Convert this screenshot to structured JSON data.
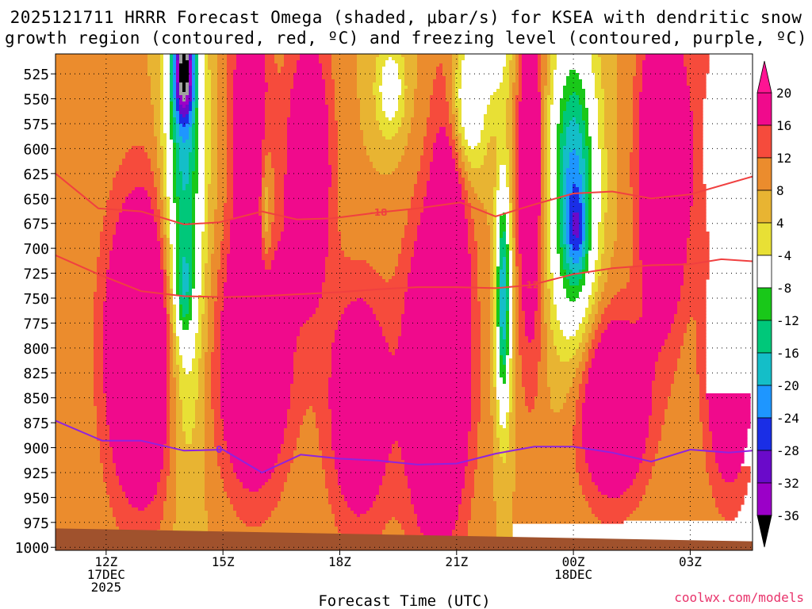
{
  "chart_data": {
    "type": "heatmap",
    "title_line1": "2025121711 HRRR Forecast Omega (shaded, μbar/s) for KSEA with dendritic snow",
    "title_line2": "growth region (contoured, red, ºC) and freezing level (contoured, purple, ºC)",
    "xlabel": "Forecast Time (UTC)",
    "xlim": [
      10.7,
      28.6
    ],
    "ylim": [
      1003,
      505
    ],
    "y_ticks": [
      525,
      550,
      575,
      600,
      625,
      650,
      675,
      700,
      725,
      750,
      775,
      800,
      825,
      850,
      875,
      900,
      925,
      950,
      975,
      1000
    ],
    "x_ticks": [
      {
        "hour": 12,
        "lines": [
          "12Z",
          "17DEC",
          "2025"
        ]
      },
      {
        "hour": 15,
        "lines": [
          "15Z"
        ]
      },
      {
        "hour": 18,
        "lines": [
          "18Z"
        ]
      },
      {
        "hour": 21,
        "lines": [
          "21Z"
        ]
      },
      {
        "hour": 24,
        "lines": [
          "00Z",
          "18DEC"
        ]
      },
      {
        "hour": 27,
        "lines": [
          "03Z"
        ]
      }
    ],
    "colorbar": {
      "levels": [
        -36,
        -32,
        -28,
        -24,
        -20,
        -16,
        -12,
        -8,
        -4,
        4,
        8,
        12,
        16,
        20
      ],
      "colors": [
        "#000000",
        "#a0a0a0",
        "#9b00c8",
        "#6a0aca",
        "#1a2ee6",
        "#1e96ff",
        "#14bec8",
        "#00c87a",
        "#19c819",
        "#ffffff",
        "#e8e035",
        "#e8b432",
        "#eb8c2d",
        "#f64b3c",
        "#f00a8c",
        "#ff1493"
      ]
    },
    "omega_field": {
      "background": 12,
      "blobs": [
        {
          "t": 12.9,
          "p": 800,
          "st": 0.9,
          "sp": 150,
          "v": 26
        },
        {
          "t": 15.8,
          "p": 820,
          "st": 0.9,
          "sp": 120,
          "v": 22
        },
        {
          "t": 15.7,
          "p": 570,
          "st": 0.5,
          "sp": 200,
          "v": 16
        },
        {
          "t": 17.2,
          "p": 620,
          "st": 0.6,
          "sp": 140,
          "v": 18
        },
        {
          "t": 18.5,
          "p": 860,
          "st": 0.8,
          "sp": 120,
          "v": 18
        },
        {
          "t": 20.5,
          "p": 830,
          "st": 0.8,
          "sp": 160,
          "v": 26
        },
        {
          "t": 20.9,
          "p": 600,
          "st": 0.5,
          "sp": 130,
          "v": 16
        },
        {
          "t": 22.9,
          "p": 620,
          "st": 0.35,
          "sp": 200,
          "v": 18
        },
        {
          "t": 25.0,
          "p": 860,
          "st": 0.9,
          "sp": 90,
          "v": 22
        },
        {
          "t": 26.3,
          "p": 620,
          "st": 0.6,
          "sp": 150,
          "v": 26
        },
        {
          "t": 28.3,
          "p": 580,
          "st": 0.9,
          "sp": 140,
          "v": 22
        },
        {
          "t": 28.0,
          "p": 820,
          "st": 0.6,
          "sp": 120,
          "v": 20
        },
        {
          "t": 14.0,
          "p": 620,
          "st": 0.5,
          "sp": 250,
          "v": -26
        },
        {
          "t": 14.0,
          "p": 520,
          "st": 0.28,
          "sp": 50,
          "v": -30
        },
        {
          "t": 14.0,
          "p": 745,
          "st": 0.22,
          "sp": 45,
          "v": -10
        },
        {
          "t": 16.1,
          "p": 670,
          "st": 0.18,
          "sp": 70,
          "v": -12
        },
        {
          "t": 19.3,
          "p": 540,
          "st": 0.4,
          "sp": 50,
          "v": -12
        },
        {
          "t": 21.2,
          "p": 560,
          "st": 0.5,
          "sp": 80,
          "v": -22
        },
        {
          "t": 22.0,
          "p": 500,
          "st": 0.5,
          "sp": 60,
          "v": -10
        },
        {
          "t": 22.2,
          "p": 750,
          "st": 0.2,
          "sp": 120,
          "v": -28
        },
        {
          "t": 24.0,
          "p": 640,
          "st": 0.6,
          "sp": 150,
          "v": -30
        },
        {
          "t": 24.1,
          "p": 685,
          "st": 0.25,
          "sp": 40,
          "v": -10
        }
      ]
    },
    "contours": [
      {
        "label": "-18",
        "color": "#f04040",
        "points": [
          [
            10.7,
            625
          ],
          [
            11.8,
            660
          ],
          [
            12.9,
            663
          ],
          [
            14.0,
            676
          ],
          [
            14.9,
            674
          ],
          [
            16.0,
            663
          ],
          [
            16.9,
            671
          ],
          [
            17.8,
            670
          ],
          [
            19.0,
            664
          ],
          [
            20.0,
            660
          ],
          [
            21.1,
            654
          ],
          [
            22.0,
            668
          ],
          [
            23.0,
            656
          ],
          [
            24.0,
            645
          ],
          [
            25.0,
            643
          ],
          [
            26.0,
            650
          ],
          [
            27.0,
            646
          ],
          [
            28.6,
            628
          ]
        ],
        "label_at": [
          19.0,
          664
        ]
      },
      {
        "label": "-12",
        "color": "#f04040",
        "points": [
          [
            10.7,
            707
          ],
          [
            11.8,
            726
          ],
          [
            12.9,
            743
          ],
          [
            14.0,
            748
          ],
          [
            15.0,
            749
          ],
          [
            16.0,
            748
          ],
          [
            17.0,
            746
          ],
          [
            18.0,
            744
          ],
          [
            19.0,
            741
          ],
          [
            20.0,
            739
          ],
          [
            21.0,
            739
          ],
          [
            22.0,
            740
          ],
          [
            22.9,
            737
          ],
          [
            24.0,
            726
          ],
          [
            25.0,
            720
          ],
          [
            26.0,
            717
          ],
          [
            27.0,
            716
          ],
          [
            27.8,
            711
          ],
          [
            28.6,
            713
          ]
        ],
        "label_at": [
          22.9,
          737
        ]
      },
      {
        "label": "0",
        "color": "#8f23df",
        "points": [
          [
            10.7,
            873
          ],
          [
            11.9,
            893
          ],
          [
            12.9,
            893
          ],
          [
            14.0,
            903
          ],
          [
            15.0,
            902
          ],
          [
            16.0,
            925
          ],
          [
            17.0,
            907
          ],
          [
            18.0,
            911
          ],
          [
            19.0,
            913
          ],
          [
            20.0,
            917
          ],
          [
            21.0,
            916
          ],
          [
            22.0,
            906
          ],
          [
            23.0,
            899
          ],
          [
            24.0,
            899
          ],
          [
            25.0,
            905
          ],
          [
            26.0,
            914
          ],
          [
            27.0,
            902
          ],
          [
            28.0,
            905
          ],
          [
            28.6,
            903
          ]
        ],
        "label_at": [
          14.9,
          902
        ]
      }
    ],
    "ground": {
      "left_p": 981,
      "right_p": 994,
      "color": "#a0522d"
    }
  },
  "credit": "coolwx.com/models"
}
